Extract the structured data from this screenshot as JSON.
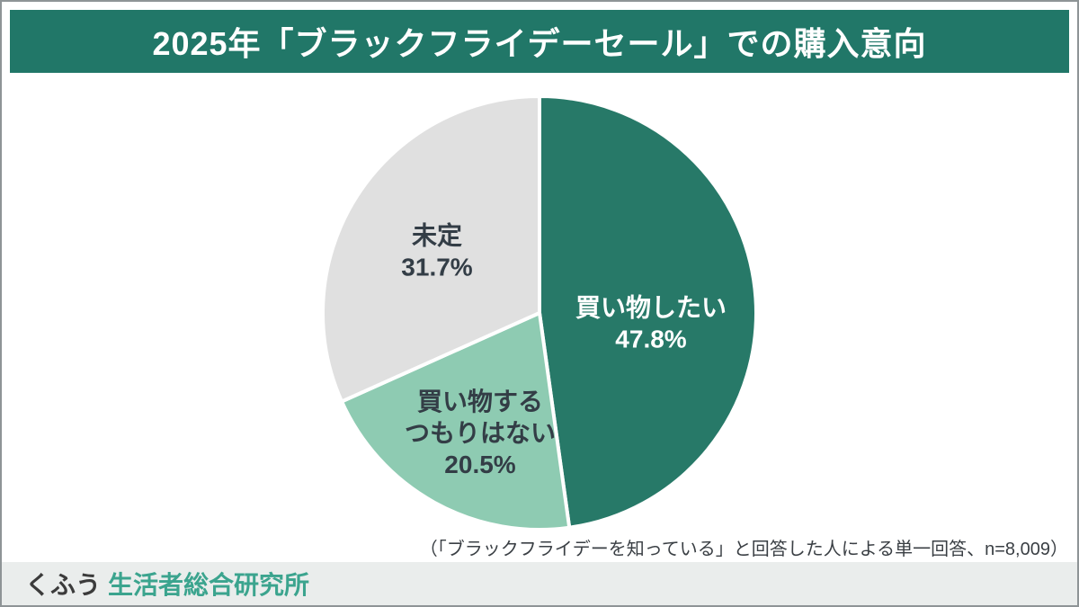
{
  "header": {
    "title": "2025年「ブラックフライデーセール」での購入意向",
    "background_color": "#217768",
    "text_color": "#ffffff"
  },
  "chart_data": {
    "type": "pie",
    "title": "2025年「ブラックフライデーセール」での購入意向",
    "start_angle_deg": 0,
    "direction": "clockwise",
    "labels_position": "inside",
    "slices": [
      {
        "label": "買い物したい",
        "label_lines": [
          "買い物したい"
        ],
        "value": 47.8,
        "percent_label": "47.8%",
        "color": "#277968",
        "text_color": "#ffffff"
      },
      {
        "label": "買い物するつもりはない",
        "label_lines": [
          "買い物する",
          "つもりはない"
        ],
        "value": 20.5,
        "percent_label": "20.5%",
        "color": "#8ecbb2",
        "text_color": "#333d46"
      },
      {
        "label": "未定",
        "label_lines": [
          "未定"
        ],
        "value": 31.7,
        "percent_label": "31.7%",
        "color": "#e0e0e0",
        "text_color": "#333d46"
      }
    ]
  },
  "footnote": "（「ブラックフライデーを知っている」と回答した人による単一回答、n=8,009）",
  "footer": {
    "brand_left": "くふう",
    "brand_right": "生活者総合研究所",
    "brand_right_color": "#3ba48e",
    "background_color": "#eaedec"
  }
}
